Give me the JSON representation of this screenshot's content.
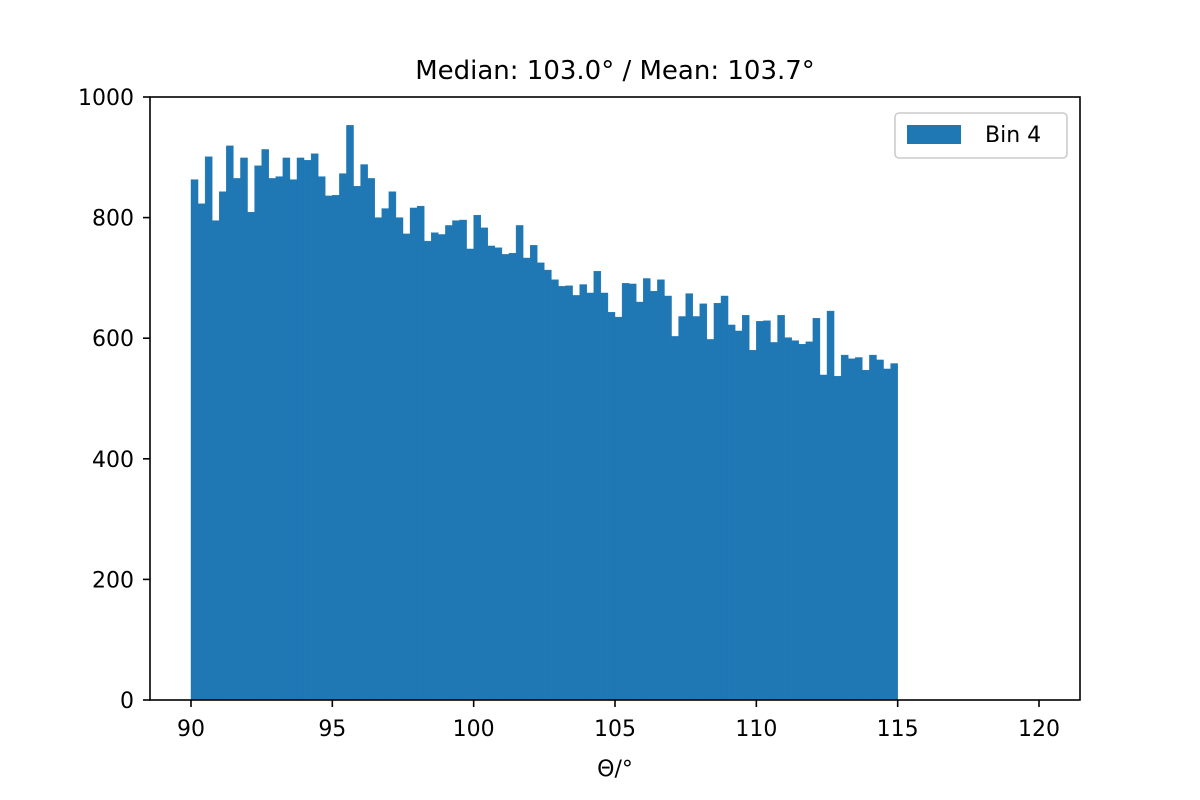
{
  "chart_data": {
    "type": "bar",
    "title": "Median: 103.0° / Mean: 103.7°",
    "xlabel": "Θ/°",
    "ylabel": "",
    "xlim": [
      88.55,
      121.45
    ],
    "ylim": [
      0,
      1000
    ],
    "xticks": [
      90,
      95,
      100,
      105,
      110,
      115,
      120
    ],
    "yticks": [
      0,
      200,
      400,
      600,
      800,
      1000
    ],
    "grid": false,
    "legend_position": "top-right",
    "bin_start": 90,
    "bin_width": 0.25,
    "colors": {
      "bar": "#1f77b4",
      "axis": "#000000",
      "legend_border": "#cccccc"
    },
    "series": [
      {
        "name": "Bin 4",
        "values": [
          863,
          823,
          901,
          795,
          843,
          919,
          865,
          899,
          809,
          886,
          913,
          865,
          868,
          899,
          863,
          899,
          895,
          906,
          868,
          836,
          837,
          873,
          953,
          852,
          888,
          865,
          800,
          815,
          843,
          800,
          773,
          816,
          819,
          761,
          775,
          772,
          787,
          795,
          796,
          748,
          804,
          783,
          753,
          750,
          739,
          741,
          787,
          733,
          754,
          725,
          713,
          697,
          686,
          687,
          671,
          689,
          675,
          711,
          675,
          643,
          635,
          691,
          690,
          660,
          699,
          678,
          697,
          670,
          603,
          636,
          674,
          636,
          657,
          598,
          658,
          670,
          622,
          612,
          638,
          580,
          628,
          629,
          593,
          638,
          601,
          596,
          590,
          594,
          633,
          539,
          645,
          537,
          572,
          566,
          568,
          547,
          572,
          564,
          549,
          558
        ]
      }
    ]
  }
}
